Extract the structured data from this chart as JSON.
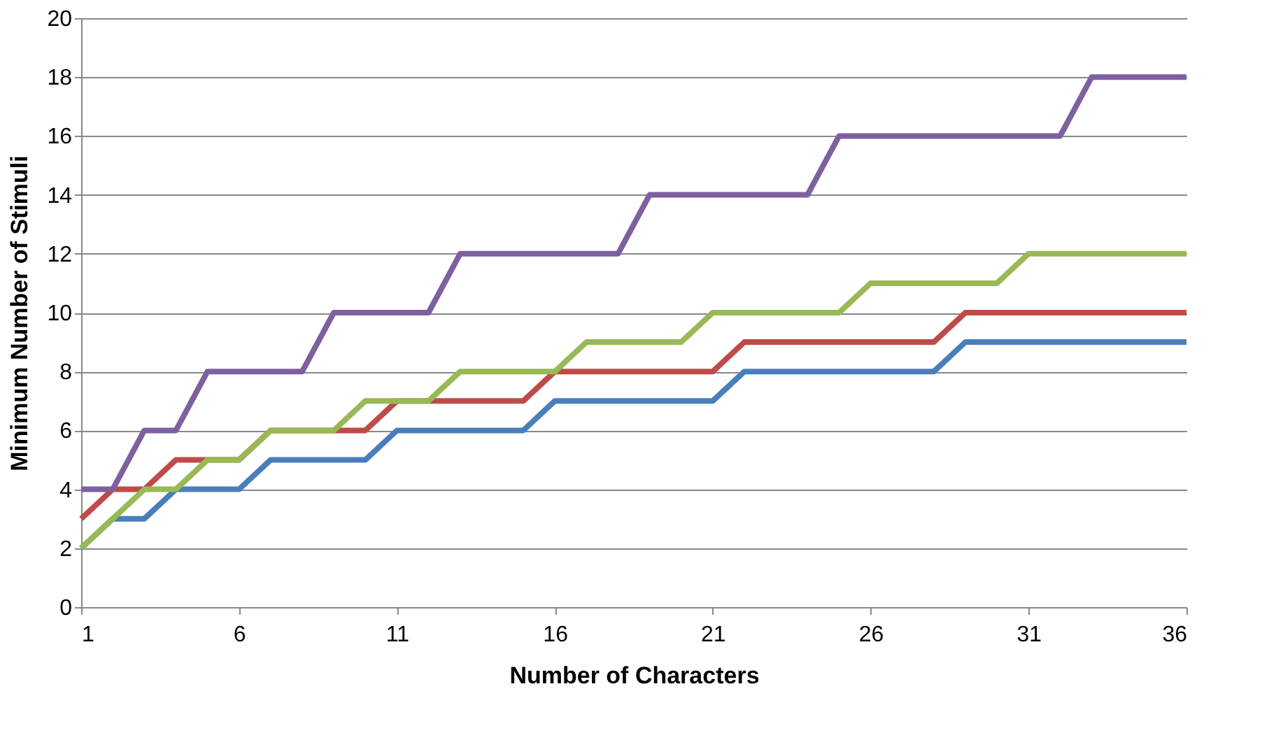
{
  "chart_data": {
    "type": "line",
    "xlabel": "Number of Characters",
    "ylabel": "Minimum Number of Stimuli",
    "x": [
      1,
      2,
      3,
      4,
      5,
      6,
      7,
      8,
      9,
      10,
      11,
      12,
      13,
      14,
      15,
      16,
      17,
      18,
      19,
      20,
      21,
      22,
      23,
      24,
      25,
      26,
      27,
      28,
      29,
      30,
      31,
      32,
      33,
      34,
      35,
      36
    ],
    "series": [
      {
        "color": "#4a7ebb",
        "values": [
          2,
          3,
          3,
          4,
          4,
          4,
          5,
          5,
          5,
          5,
          6,
          6,
          6,
          6,
          6,
          7,
          7,
          7,
          7,
          7,
          7,
          8,
          8,
          8,
          8,
          8,
          8,
          8,
          9,
          9,
          9,
          9,
          9,
          9,
          9,
          9
        ]
      },
      {
        "color": "#be4b48",
        "values": [
          3,
          4,
          4,
          5,
          5,
          5,
          6,
          6,
          6,
          6,
          7,
          7,
          7,
          7,
          7,
          8,
          8,
          8,
          8,
          8,
          8,
          9,
          9,
          9,
          9,
          9,
          9,
          9,
          10,
          10,
          10,
          10,
          10,
          10,
          10,
          10
        ]
      },
      {
        "color": "#98b954",
        "values": [
          2,
          3,
          4,
          4,
          5,
          5,
          6,
          6,
          6,
          7,
          7,
          7,
          8,
          8,
          8,
          8,
          9,
          9,
          9,
          9,
          10,
          10,
          10,
          10,
          10,
          11,
          11,
          11,
          11,
          11,
          12,
          12,
          12,
          12,
          12,
          12
        ]
      },
      {
        "color": "#7d60a0",
        "values": [
          4,
          4,
          6,
          6,
          8,
          8,
          8,
          8,
          10,
          10,
          10,
          10,
          12,
          12,
          12,
          12,
          12,
          12,
          14,
          14,
          14,
          14,
          14,
          14,
          16,
          16,
          16,
          16,
          16,
          16,
          16,
          16,
          18,
          18,
          18,
          18
        ]
      }
    ],
    "xlim": [
      1,
      36
    ],
    "xticks": [
      1,
      6,
      11,
      16,
      21,
      26,
      31,
      36
    ],
    "ylim": [
      0,
      20
    ],
    "yticks": [
      0,
      2,
      4,
      6,
      8,
      10,
      12,
      14,
      16,
      18,
      20
    ],
    "grid": "y",
    "legend": false,
    "marker": "none",
    "line_style": "solid"
  }
}
